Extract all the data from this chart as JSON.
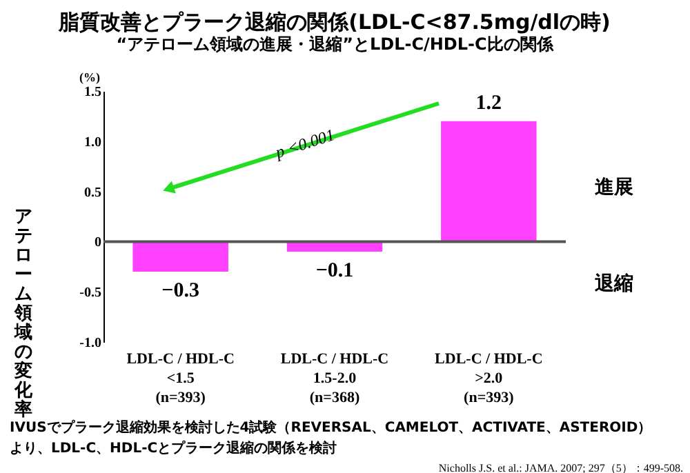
{
  "chart_data": {
    "type": "bar",
    "title": "脂質改善とプラーク退縮の関係(LDL-C<87.5mg/dlの時)",
    "subtitle": "“アテローム領域の進展・退縮”とLDL-C/HDL-C比の関係",
    "ylabel": "アテローム領域の変化率",
    "categories": [
      "LDL-C / HDL-C\n<1.5\n(n=393)",
      "LDL-C / HDL-C\n1.5-2.0\n(n=368)",
      "LDL-C / HDL-C\n>2.0\n(n=393)"
    ],
    "values": [
      -0.3,
      -0.1,
      1.2
    ],
    "color": "#ff40ff",
    "data_labels": true,
    "ylim": [
      -1.0,
      1.5
    ],
    "yticks": [
      {
        "value": -1.0,
        "label": "-1.0"
      },
      {
        "value": -0.5,
        "label": "-0.5"
      },
      0,
      {
        "value": 0.5,
        "label": "0.5"
      },
      {
        "value": 1.0,
        "label": "1.0"
      },
      {
        "value": 1.5,
        "label": "1.5"
      }
    ],
    "ref_lines": [
      {
        "axis": "y",
        "value": 0,
        "color": "#555555"
      }
    ],
    "grid": false,
    "annotations": [
      "(%)",
      "p <0.001",
      "進展",
      "退縮",
      "IVUSでプラーク退縮効果を検討した4試験（REVERSAL、CAMELOT、ACTIVATE、ASTEROID）",
      "より、LDL-C、HDL-Cとプラーク退縮の関係を検討",
      "Nicholls J.S. et al.: JAMA. 2007; 297（5）：499-508."
    ]
  }
}
